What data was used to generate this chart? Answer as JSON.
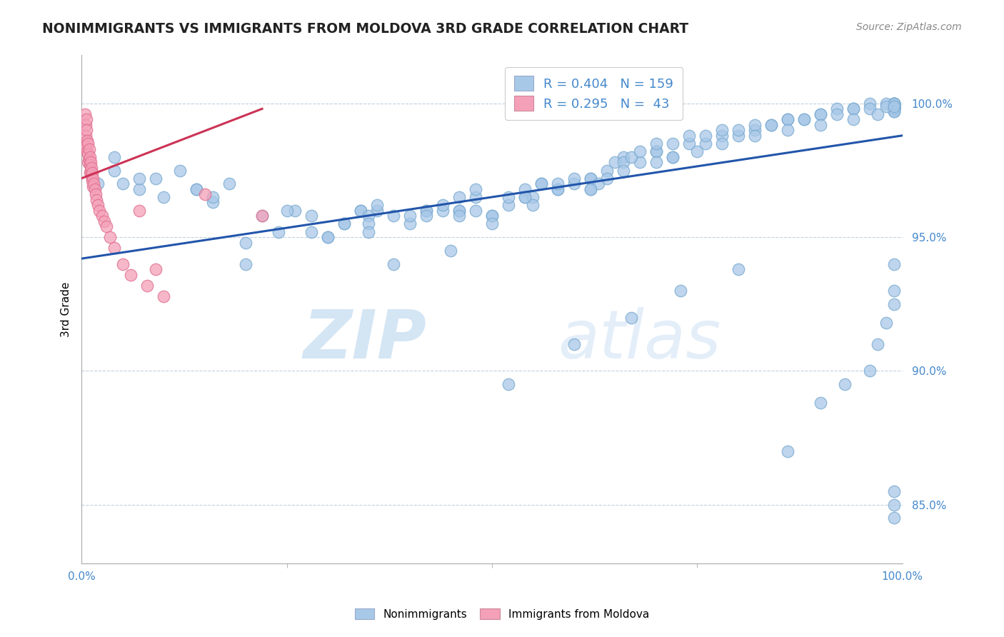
{
  "title": "NONIMMIGRANTS VS IMMIGRANTS FROM MOLDOVA 3RD GRADE CORRELATION CHART",
  "source_text": "Source: ZipAtlas.com",
  "ylabel": "3rd Grade",
  "xlim": [
    0.0,
    1.0
  ],
  "ylim": [
    0.828,
    1.018
  ],
  "yticks": [
    0.85,
    0.9,
    0.95,
    1.0
  ],
  "ytick_labels": [
    "85.0%",
    "90.0%",
    "95.0%",
    "100.0%"
  ],
  "xtick_labels": [
    "0.0%",
    "100.0%"
  ],
  "watermark_zip": "ZIP",
  "watermark_atlas": "atlas",
  "blue_R": 0.404,
  "blue_N": 159,
  "pink_R": 0.295,
  "pink_N": 43,
  "blue_color": "#a8c8e8",
  "pink_color": "#f4a0b8",
  "blue_edge_color": "#7aaad0",
  "pink_edge_color": "#e07090",
  "blue_line_color": "#2255aa",
  "pink_line_color": "#cc3355",
  "legend_box_blue": "#a8c8e8",
  "legend_box_pink": "#f4a0b8",
  "blue_scatter_x": [
    0.02,
    0.04,
    0.05,
    0.07,
    0.09,
    0.1,
    0.12,
    0.14,
    0.16,
    0.18,
    0.2,
    0.22,
    0.24,
    0.26,
    0.28,
    0.3,
    0.32,
    0.34,
    0.36,
    0.38,
    0.4,
    0.42,
    0.44,
    0.46,
    0.48,
    0.5,
    0.52,
    0.54,
    0.56,
    0.58,
    0.6,
    0.62,
    0.64,
    0.66,
    0.68,
    0.7,
    0.72,
    0.74,
    0.76,
    0.78,
    0.8,
    0.82,
    0.84,
    0.86,
    0.88,
    0.9,
    0.92,
    0.94,
    0.96,
    0.98,
    0.99,
    0.99,
    0.99,
    0.99,
    0.99,
    0.99,
    0.99,
    0.99,
    0.99,
    0.99,
    0.99,
    0.99,
    0.99,
    0.99,
    0.99,
    0.99,
    0.99,
    0.99,
    0.99,
    0.99,
    0.04,
    0.07,
    0.14,
    0.16,
    0.25,
    0.28,
    0.32,
    0.34,
    0.35,
    0.35,
    0.36,
    0.4,
    0.42,
    0.44,
    0.46,
    0.46,
    0.46,
    0.48,
    0.5,
    0.52,
    0.54,
    0.55,
    0.55,
    0.56,
    0.58,
    0.6,
    0.62,
    0.62,
    0.63,
    0.65,
    0.66,
    0.67,
    0.68,
    0.7,
    0.7,
    0.72,
    0.74,
    0.76,
    0.78,
    0.8,
    0.82,
    0.84,
    0.86,
    0.88,
    0.9,
    0.92,
    0.94,
    0.96,
    0.98,
    0.99,
    0.2,
    0.3,
    0.35,
    0.42,
    0.48,
    0.5,
    0.54,
    0.58,
    0.62,
    0.64,
    0.66,
    0.7,
    0.72,
    0.75,
    0.78,
    0.82,
    0.86,
    0.9,
    0.94,
    0.97,
    0.38,
    0.45,
    0.52,
    0.6,
    0.67,
    0.73,
    0.8,
    0.86,
    0.9,
    0.93,
    0.96,
    0.97,
    0.98,
    0.99,
    0.99,
    0.99,
    0.99,
    0.99,
    0.99
  ],
  "blue_scatter_y": [
    0.97,
    0.975,
    0.97,
    0.968,
    0.972,
    0.965,
    0.975,
    0.968,
    0.963,
    0.97,
    0.94,
    0.958,
    0.952,
    0.96,
    0.958,
    0.95,
    0.955,
    0.96,
    0.96,
    0.958,
    0.955,
    0.96,
    0.96,
    0.96,
    0.965,
    0.958,
    0.962,
    0.965,
    0.97,
    0.968,
    0.97,
    0.972,
    0.975,
    0.98,
    0.978,
    0.982,
    0.98,
    0.985,
    0.985,
    0.988,
    0.988,
    0.99,
    0.992,
    0.994,
    0.994,
    0.996,
    0.998,
    0.998,
    1.0,
    1.0,
    1.0,
    0.999,
    0.998,
    0.999,
    1.0,
    0.999,
    0.998,
    0.997,
    0.999,
    1.0,
    0.999,
    0.998,
    1.0,
    0.999,
    0.998,
    1.0,
    0.999,
    0.998,
    0.997,
    1.0,
    0.98,
    0.972,
    0.968,
    0.965,
    0.96,
    0.952,
    0.955,
    0.96,
    0.958,
    0.955,
    0.962,
    0.958,
    0.96,
    0.962,
    0.96,
    0.965,
    0.958,
    0.968,
    0.958,
    0.965,
    0.968,
    0.965,
    0.962,
    0.97,
    0.968,
    0.972,
    0.968,
    0.972,
    0.97,
    0.978,
    0.978,
    0.98,
    0.982,
    0.982,
    0.985,
    0.985,
    0.988,
    0.988,
    0.99,
    0.99,
    0.992,
    0.992,
    0.994,
    0.994,
    0.996,
    0.996,
    0.998,
    0.998,
    0.999,
    0.999,
    0.948,
    0.95,
    0.952,
    0.958,
    0.96,
    0.955,
    0.965,
    0.97,
    0.968,
    0.972,
    0.975,
    0.978,
    0.98,
    0.982,
    0.985,
    0.988,
    0.99,
    0.992,
    0.994,
    0.996,
    0.94,
    0.945,
    0.895,
    0.91,
    0.92,
    0.93,
    0.938,
    0.87,
    0.888,
    0.895,
    0.9,
    0.91,
    0.918,
    0.925,
    0.93,
    0.94,
    0.845,
    0.85,
    0.855
  ],
  "pink_scatter_x": [
    0.004,
    0.005,
    0.005,
    0.005,
    0.006,
    0.006,
    0.007,
    0.007,
    0.008,
    0.008,
    0.008,
    0.009,
    0.009,
    0.01,
    0.01,
    0.01,
    0.011,
    0.011,
    0.012,
    0.012,
    0.013,
    0.013,
    0.014,
    0.014,
    0.015,
    0.016,
    0.017,
    0.018,
    0.02,
    0.022,
    0.025,
    0.028,
    0.03,
    0.035,
    0.04,
    0.05,
    0.06,
    0.07,
    0.08,
    0.09,
    0.1,
    0.15,
    0.22
  ],
  "pink_scatter_y": [
    0.996,
    0.992,
    0.988,
    0.984,
    0.994,
    0.99,
    0.986,
    0.982,
    0.985,
    0.981,
    0.978,
    0.983,
    0.979,
    0.98,
    0.977,
    0.974,
    0.978,
    0.975,
    0.976,
    0.973,
    0.974,
    0.971,
    0.972,
    0.969,
    0.97,
    0.968,
    0.966,
    0.964,
    0.962,
    0.96,
    0.958,
    0.956,
    0.954,
    0.95,
    0.946,
    0.94,
    0.936,
    0.96,
    0.932,
    0.938,
    0.928,
    0.966,
    0.958
  ],
  "blue_line_start_x": 0.0,
  "blue_line_end_x": 1.0,
  "blue_line_start_y": 0.942,
  "blue_line_end_y": 0.988,
  "pink_line_start_x": 0.0,
  "pink_line_end_x": 0.22,
  "pink_line_start_y": 0.972,
  "pink_line_end_y": 0.998
}
